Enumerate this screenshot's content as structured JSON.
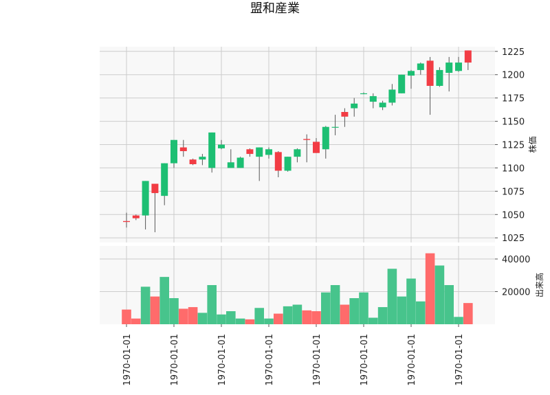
{
  "chart_data": {
    "type": "candlestick",
    "title": "盟和産業",
    "colors": {
      "up": "#1dbf73",
      "down": "#f23c44",
      "volume_up": "#47c48c",
      "volume_down": "#ff6b6b",
      "panel_bg": "#f8f8f8",
      "grid": "#cccccc"
    },
    "grid": true,
    "x_tick_labels": [
      "1970-01-01",
      "1970-01-01",
      "1970-01-01",
      "1970-01-01",
      "1970-01-01",
      "1970-01-01",
      "1970-01-01",
      "1970-01-01"
    ],
    "price_panel": {
      "ylabel": "株価",
      "ylim": [
        1020,
        1230
      ],
      "yticks": [
        1025,
        1050,
        1075,
        1100,
        1125,
        1150,
        1175,
        1200,
        1225
      ]
    },
    "volume_panel": {
      "ylabel": "出来高",
      "ylim": [
        0,
        48000
      ],
      "yticks": [
        20000,
        40000
      ]
    },
    "candles": [
      {
        "open": 1043,
        "high": 1052,
        "low": 1036,
        "close": 1042,
        "volume": 9000
      },
      {
        "open": 1049,
        "high": 1050,
        "low": 1044,
        "close": 1046,
        "volume": 3500
      },
      {
        "open": 1049,
        "high": 1086,
        "low": 1034,
        "close": 1086,
        "volume": 23000
      },
      {
        "open": 1083,
        "high": 1083,
        "low": 1031,
        "close": 1073,
        "volume": 17000
      },
      {
        "open": 1070,
        "high": 1105,
        "low": 1060,
        "close": 1105,
        "volume": 29000
      },
      {
        "open": 1105,
        "high": 1130,
        "low": 1100,
        "close": 1130,
        "volume": 16000
      },
      {
        "open": 1122,
        "high": 1130,
        "low": 1112,
        "close": 1118,
        "volume": 9500
      },
      {
        "open": 1109,
        "high": 1110,
        "low": 1103,
        "close": 1104,
        "volume": 10500
      },
      {
        "open": 1109,
        "high": 1115,
        "low": 1103,
        "close": 1112,
        "volume": 7000
      },
      {
        "open": 1100,
        "high": 1138,
        "low": 1095,
        "close": 1138,
        "volume": 24000
      },
      {
        "open": 1121,
        "high": 1130,
        "low": 1120,
        "close": 1125,
        "volume": 6000
      },
      {
        "open": 1100,
        "high": 1120,
        "low": 1100,
        "close": 1106,
        "volume": 8000
      },
      {
        "open": 1100,
        "high": 1112,
        "low": 1100,
        "close": 1111,
        "volume": 3500
      },
      {
        "open": 1120,
        "high": 1121,
        "low": 1112,
        "close": 1115,
        "volume": 3000
      },
      {
        "open": 1112,
        "high": 1122,
        "low": 1086,
        "close": 1122,
        "volume": 10000
      },
      {
        "open": 1114,
        "high": 1122,
        "low": 1110,
        "close": 1120,
        "volume": 3500
      },
      {
        "open": 1117,
        "high": 1118,
        "low": 1090,
        "close": 1097,
        "volume": 6500
      },
      {
        "open": 1097,
        "high": 1112,
        "low": 1096,
        "close": 1112,
        "volume": 11000
      },
      {
        "open": 1112,
        "high": 1121,
        "low": 1106,
        "close": 1120,
        "volume": 12000
      },
      {
        "open": 1131,
        "high": 1136,
        "low": 1106,
        "close": 1130,
        "volume": 8500
      },
      {
        "open": 1128,
        "high": 1132,
        "low": 1116,
        "close": 1116,
        "volume": 8000
      },
      {
        "open": 1120,
        "high": 1145,
        "low": 1110,
        "close": 1144,
        "volume": 19500
      },
      {
        "open": 1144,
        "high": 1157,
        "low": 1135,
        "close": 1144,
        "volume": 24000
      },
      {
        "open": 1160,
        "high": 1164,
        "low": 1144,
        "close": 1155,
        "volume": 12000
      },
      {
        "open": 1164,
        "high": 1175,
        "low": 1155,
        "close": 1169,
        "volume": 16000
      },
      {
        "open": 1180,
        "high": 1181,
        "low": 1179,
        "close": 1180,
        "volume": 19500
      },
      {
        "open": 1171,
        "high": 1180,
        "low": 1164,
        "close": 1177,
        "volume": 4000
      },
      {
        "open": 1165,
        "high": 1172,
        "low": 1162,
        "close": 1170,
        "volume": 10500
      },
      {
        "open": 1170,
        "high": 1190,
        "low": 1167,
        "close": 1184,
        "volume": 34000
      },
      {
        "open": 1180,
        "high": 1200,
        "low": 1180,
        "close": 1200,
        "volume": 17000
      },
      {
        "open": 1199,
        "high": 1205,
        "low": 1185,
        "close": 1204,
        "volume": 28000
      },
      {
        "open": 1205,
        "high": 1213,
        "low": 1200,
        "close": 1212,
        "volume": 14000
      },
      {
        "open": 1215,
        "high": 1219,
        "low": 1157,
        "close": 1188,
        "volume": 43500
      },
      {
        "open": 1188,
        "high": 1208,
        "low": 1187,
        "close": 1205,
        "volume": 36000
      },
      {
        "open": 1202,
        "high": 1219,
        "low": 1182,
        "close": 1213,
        "volume": 24000
      },
      {
        "open": 1204,
        "high": 1219,
        "low": 1203,
        "close": 1213,
        "volume": 4500
      },
      {
        "open": 1226,
        "high": 1226,
        "low": 1205,
        "close": 1213,
        "volume": 13000
      }
    ]
  }
}
